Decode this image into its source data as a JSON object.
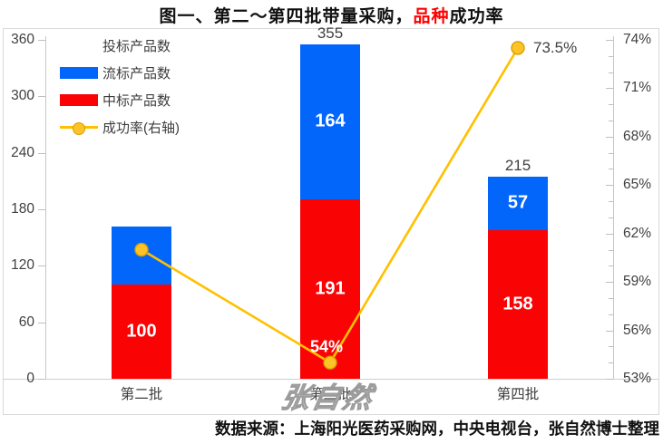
{
  "title": {
    "prefix": "图一、第二～第四批带量采购，",
    "highlight": "品种",
    "suffix": "成功率"
  },
  "legend": {
    "items": [
      {
        "label": "投标产品数",
        "swatch": "none"
      },
      {
        "label": "流标产品数",
        "swatch": "blue"
      },
      {
        "label": "中标产品数",
        "swatch": "red"
      },
      {
        "label": "成功率(右轴)",
        "swatch": "line"
      }
    ]
  },
  "watermark": "张自然",
  "source_note": "数据来源：上海阳光医药采购网，中央电视台，张自然博士整理",
  "colors": {
    "bar_blue": "#0366FB",
    "bar_red": "#F90305",
    "line_yellow": "#FFC000",
    "marker_fill": "#FEC327",
    "marker_stroke": "#D99E00",
    "axis_text": "#404040",
    "axis_line": "#C6C6C6",
    "frame": "#D9D9D9",
    "title_highlight": "#FF0000"
  },
  "chart_data": {
    "type": "bar",
    "subtype": "stacked-bars-with-line",
    "categories": [
      "第二批",
      "第三批",
      "第四批"
    ],
    "series": [
      {
        "key": "won-products",
        "name": "中标产品数",
        "color_key": "bar_red",
        "values": [
          100,
          191,
          158
        ],
        "labels": [
          "100",
          "191",
          "158"
        ]
      },
      {
        "key": "failed-products",
        "name": "流标产品数",
        "color_key": "bar_blue",
        "values": [
          62,
          164,
          57
        ],
        "labels": [
          "",
          "164",
          "57"
        ]
      }
    ],
    "totals": {
      "name": "投标产品数",
      "values": [
        162,
        355,
        215
      ],
      "labels": [
        "",
        "355",
        "215"
      ]
    },
    "line": {
      "name": "成功率(右轴)",
      "axis": "right",
      "values": [
        61,
        54,
        73.5
      ],
      "point_labels": [
        {
          "text": "",
          "placement": "none"
        },
        {
          "text": "54%",
          "placement": "above-on-bar"
        },
        {
          "text": "73.5%",
          "placement": "right-outside"
        }
      ]
    },
    "left_axis": {
      "min": 0,
      "max": 360,
      "step": 60,
      "ticks": [
        0,
        60,
        120,
        180,
        240,
        300,
        360
      ]
    },
    "right_axis": {
      "min": 53,
      "max": 74,
      "step": 3,
      "minor_step": 1,
      "format": "%",
      "ticks": [
        53,
        56,
        59,
        62,
        65,
        68,
        71,
        74
      ]
    },
    "grid": "off",
    "legend_position": "top-left-inside"
  }
}
